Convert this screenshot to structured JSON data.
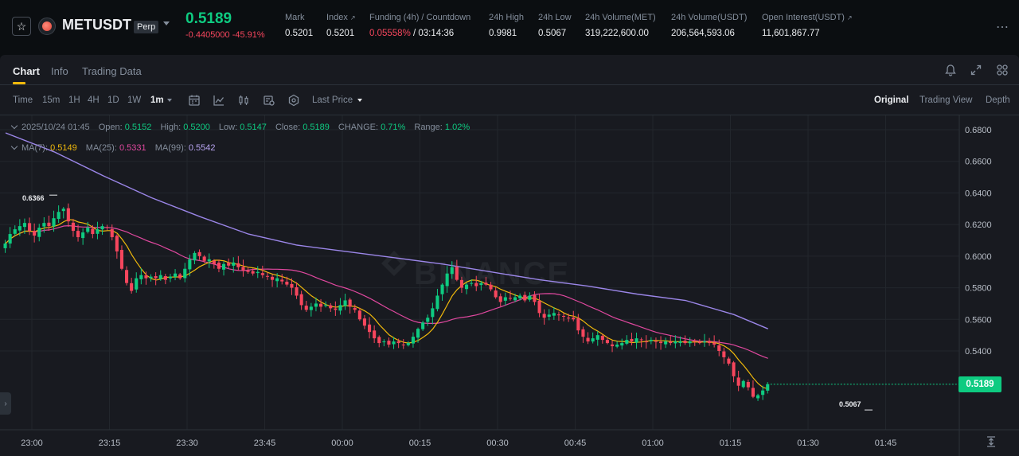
{
  "header": {
    "symbol": "METUSDT",
    "contract_type": "Perp",
    "last_price": "0.5189",
    "price_change": "-0.4405000 -45.91%",
    "stats": [
      {
        "label": "Mark",
        "value": "0.5201"
      },
      {
        "label": "Index",
        "value": "0.5201",
        "ext": "↗"
      },
      {
        "label": "Funding (4h) / Countdown",
        "funding": "0.05558%",
        "separator": " / ",
        "countdown": "03:14:36"
      },
      {
        "label": "24h High",
        "value": "0.9981"
      },
      {
        "label": "24h Low",
        "value": "0.5067"
      },
      {
        "label": "24h Volume(MET)",
        "value": "319,222,600.00"
      },
      {
        "label": "24h Volume(USDT)",
        "value": "206,564,593.06"
      },
      {
        "label": "Open Interest(USDT)",
        "value": "11,601,867.77",
        "ext": "↗"
      }
    ],
    "more_icon": "⋯"
  },
  "tabs": [
    "Chart",
    "Info",
    "Trading Data"
  ],
  "toolbar": {
    "timeframes": [
      "Time",
      "15m",
      "1H",
      "4H",
      "1D",
      "1W"
    ],
    "active_timeframe": "1m",
    "price_type": "Last Price",
    "views": [
      "Original",
      "Trading View",
      "Depth"
    ],
    "active_view": "Original"
  },
  "legend": {
    "date": "2025/10/24 01:45",
    "open_label": "Open:",
    "open": "0.5152",
    "high_label": "High:",
    "high": "0.5200",
    "low_label": "Low:",
    "low": "0.5147",
    "close_label": "Close:",
    "close": "0.5189",
    "change_label": "CHANGE:",
    "change": "0.71%",
    "range_label": "Range:",
    "range": "1.02%",
    "ma7_label": "MA(7):",
    "ma7": "0.5149",
    "ma25_label": "MA(25):",
    "ma25": "0.5331",
    "ma99_label": "MA(99):",
    "ma99": "0.5542"
  },
  "watermark": "BINANCE",
  "colors": {
    "up": "#0ecb81",
    "down": "#f6465d",
    "ma7": "#f0b90b",
    "ma25": "#e0489f",
    "ma99": "#9b86e8",
    "accent": "#f0b90b"
  },
  "chart_data": {
    "type": "candlestick",
    "y_ticks": [
      "0.6800",
      "0.6600",
      "0.6400",
      "0.6200",
      "0.6000",
      "0.5800",
      "0.5600",
      "0.5400"
    ],
    "ylim": [
      0.505,
      0.683
    ],
    "x_ticks": [
      "23:00",
      "23:15",
      "23:30",
      "23:45",
      "00:00",
      "00:15",
      "00:30",
      "00:45",
      "01:00",
      "01:15",
      "01:30",
      "01:45"
    ],
    "current_price": "0.5189",
    "high_marker": "0.6366",
    "low_marker": "0.5067",
    "close_path": [
      [
        0,
        0.608
      ],
      [
        1,
        0.614
      ],
      [
        2,
        0.617
      ],
      [
        3,
        0.619
      ],
      [
        4,
        0.621
      ],
      [
        5,
        0.616
      ],
      [
        6,
        0.613
      ],
      [
        7,
        0.618
      ],
      [
        8,
        0.621
      ],
      [
        9,
        0.619
      ],
      [
        10,
        0.624
      ],
      [
        11,
        0.628
      ],
      [
        12,
        0.63
      ],
      [
        13,
        0.622
      ],
      [
        14,
        0.616
      ],
      [
        15,
        0.612
      ],
      [
        16,
        0.615
      ],
      [
        17,
        0.618
      ],
      [
        18,
        0.614
      ],
      [
        19,
        0.617
      ],
      [
        20,
        0.619
      ],
      [
        21,
        0.618
      ],
      [
        22,
        0.612
      ],
      [
        23,
        0.603
      ],
      [
        24,
        0.592
      ],
      [
        25,
        0.583
      ],
      [
        26,
        0.578
      ],
      [
        27,
        0.586
      ],
      [
        28,
        0.588
      ],
      [
        29,
        0.586
      ],
      [
        30,
        0.587
      ],
      [
        31,
        0.586
      ],
      [
        32,
        0.588
      ],
      [
        33,
        0.585
      ],
      [
        34,
        0.587
      ],
      [
        35,
        0.589
      ],
      [
        36,
        0.586
      ],
      [
        37,
        0.592
      ],
      [
        38,
        0.598
      ],
      [
        39,
        0.602
      ],
      [
        40,
        0.6
      ],
      [
        41,
        0.597
      ],
      [
        42,
        0.598
      ],
      [
        43,
        0.595
      ],
      [
        44,
        0.592
      ],
      [
        45,
        0.595
      ],
      [
        46,
        0.594
      ],
      [
        47,
        0.596
      ],
      [
        48,
        0.593
      ],
      [
        49,
        0.591
      ],
      [
        50,
        0.59
      ],
      [
        51,
        0.589
      ],
      [
        52,
        0.59
      ],
      [
        53,
        0.588
      ],
      [
        54,
        0.587
      ],
      [
        55,
        0.585
      ],
      [
        56,
        0.586
      ],
      [
        57,
        0.584
      ],
      [
        58,
        0.582
      ],
      [
        59,
        0.58
      ],
      [
        60,
        0.575
      ],
      [
        61,
        0.569
      ],
      [
        62,
        0.566
      ],
      [
        63,
        0.568
      ],
      [
        64,
        0.57
      ],
      [
        65,
        0.568
      ],
      [
        66,
        0.569
      ],
      [
        67,
        0.567
      ],
      [
        68,
        0.566
      ],
      [
        69,
        0.569
      ],
      [
        70,
        0.572
      ],
      [
        71,
        0.568
      ],
      [
        72,
        0.566
      ],
      [
        73,
        0.56
      ],
      [
        74,
        0.556
      ],
      [
        75,
        0.552
      ],
      [
        76,
        0.548
      ],
      [
        77,
        0.545
      ],
      [
        78,
        0.546
      ],
      [
        79,
        0.544
      ],
      [
        80,
        0.546
      ],
      [
        81,
        0.545
      ],
      [
        82,
        0.544
      ],
      [
        83,
        0.545
      ],
      [
        84,
        0.549
      ],
      [
        85,
        0.554
      ],
      [
        86,
        0.558
      ],
      [
        87,
        0.561
      ],
      [
        88,
        0.567
      ],
      [
        89,
        0.575
      ],
      [
        90,
        0.582
      ],
      [
        91,
        0.589
      ],
      [
        92,
        0.593
      ],
      [
        93,
        0.585
      ],
      [
        94,
        0.58
      ],
      [
        95,
        0.582
      ],
      [
        96,
        0.583
      ],
      [
        97,
        0.581
      ],
      [
        98,
        0.583
      ],
      [
        99,
        0.582
      ],
      [
        100,
        0.579
      ],
      [
        101,
        0.574
      ],
      [
        102,
        0.571
      ],
      [
        103,
        0.574
      ],
      [
        104,
        0.573
      ],
      [
        105,
        0.574
      ],
      [
        106,
        0.575
      ],
      [
        107,
        0.572
      ],
      [
        108,
        0.575
      ],
      [
        109,
        0.571
      ],
      [
        110,
        0.564
      ],
      [
        111,
        0.561
      ],
      [
        112,
        0.563
      ],
      [
        113,
        0.564
      ],
      [
        114,
        0.563
      ],
      [
        115,
        0.562
      ],
      [
        116,
        0.561
      ],
      [
        117,
        0.56
      ],
      [
        118,
        0.553
      ],
      [
        119,
        0.549
      ],
      [
        120,
        0.546
      ],
      [
        121,
        0.548
      ],
      [
        122,
        0.55
      ],
      [
        123,
        0.547
      ],
      [
        124,
        0.545
      ],
      [
        125,
        0.543
      ],
      [
        126,
        0.544
      ],
      [
        127,
        0.545
      ],
      [
        128,
        0.547
      ],
      [
        129,
        0.546
      ],
      [
        130,
        0.548
      ],
      [
        131,
        0.547
      ],
      [
        132,
        0.546
      ],
      [
        133,
        0.547
      ],
      [
        134,
        0.546
      ],
      [
        135,
        0.545
      ],
      [
        136,
        0.546
      ],
      [
        137,
        0.545
      ],
      [
        138,
        0.546
      ],
      [
        139,
        0.546
      ],
      [
        140,
        0.545
      ],
      [
        141,
        0.546
      ],
      [
        142,
        0.546
      ],
      [
        143,
        0.545
      ],
      [
        144,
        0.546
      ],
      [
        145,
        0.545
      ],
      [
        146,
        0.544
      ],
      [
        147,
        0.54
      ],
      [
        148,
        0.536
      ],
      [
        149,
        0.532
      ],
      [
        150,
        0.524
      ],
      [
        151,
        0.518
      ],
      [
        152,
        0.521
      ],
      [
        153,
        0.517
      ],
      [
        154,
        0.511
      ],
      [
        155,
        0.512
      ],
      [
        156,
        0.515
      ],
      [
        157,
        0.519
      ]
    ],
    "ma99_path": [
      [
        0,
        0.678
      ],
      [
        10,
        0.666
      ],
      [
        20,
        0.651
      ],
      [
        30,
        0.637
      ],
      [
        40,
        0.625
      ],
      [
        50,
        0.614
      ],
      [
        60,
        0.607
      ],
      [
        70,
        0.603
      ],
      [
        80,
        0.599
      ],
      [
        90,
        0.595
      ],
      [
        100,
        0.59
      ],
      [
        110,
        0.585
      ],
      [
        120,
        0.581
      ],
      [
        130,
        0.576
      ],
      [
        140,
        0.572
      ],
      [
        150,
        0.563
      ],
      [
        157,
        0.554
      ]
    ]
  }
}
